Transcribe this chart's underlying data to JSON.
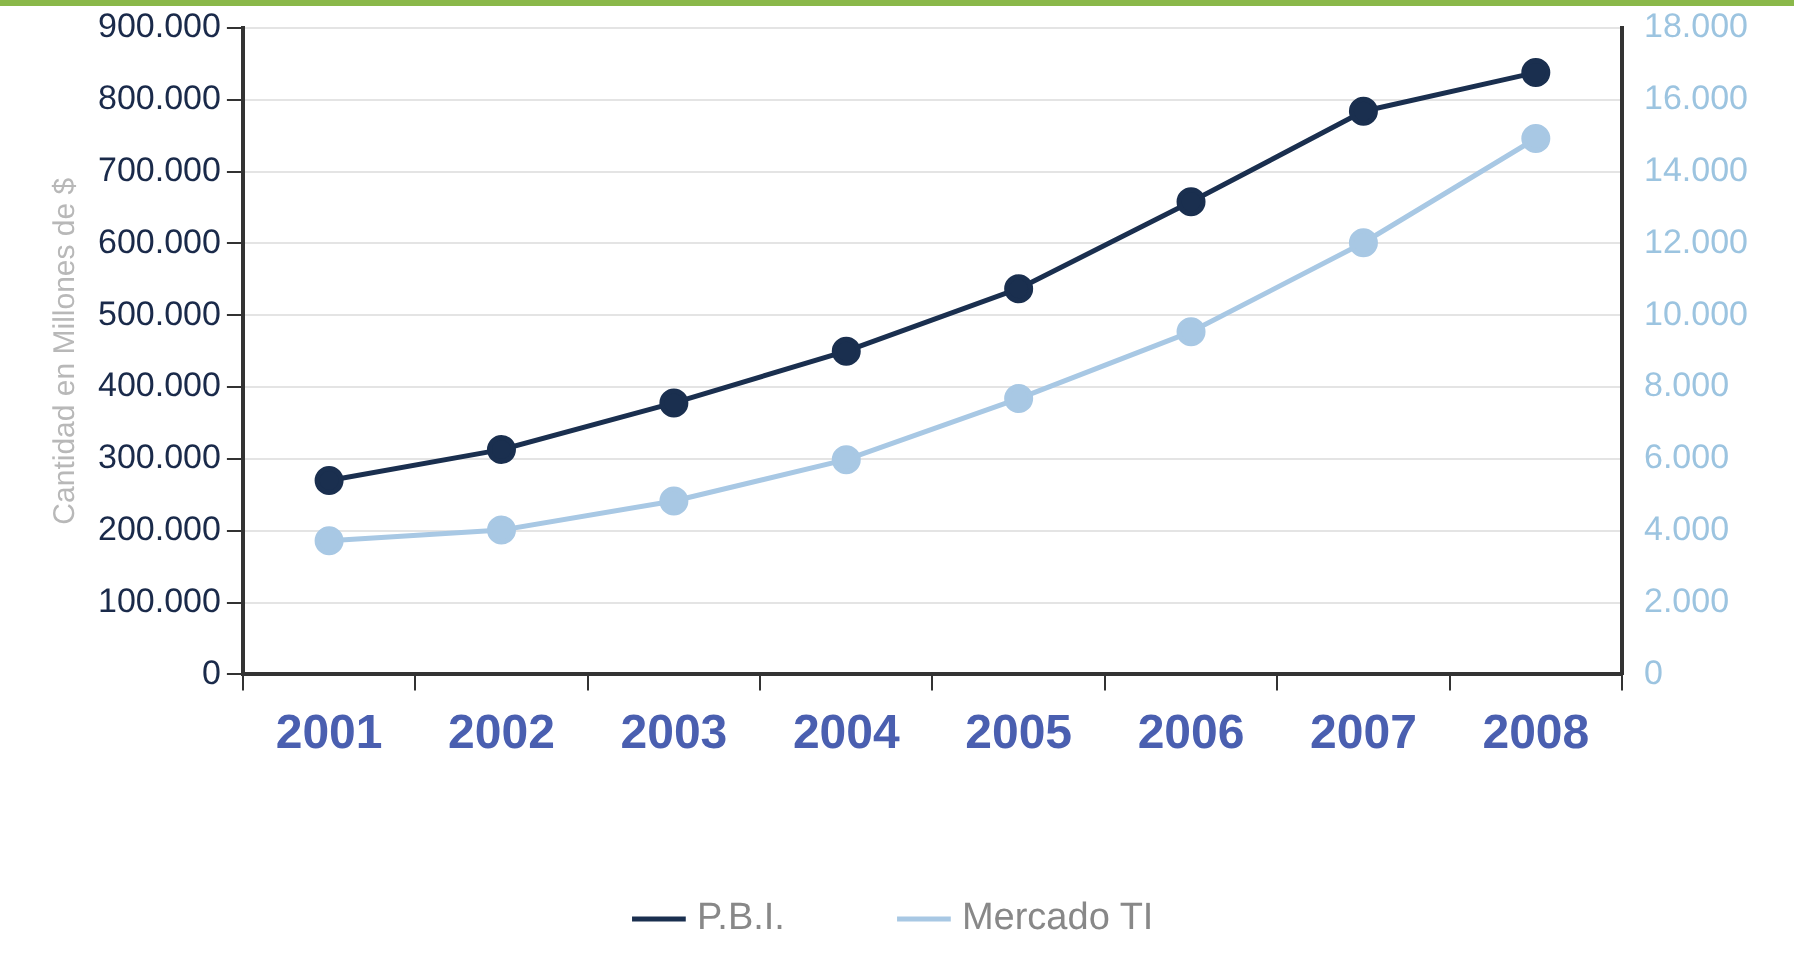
{
  "chart_data": {
    "type": "line",
    "ylabel": "Cantidad en Millones de $",
    "categories": [
      "2001",
      "2002",
      "2003",
      "2004",
      "2005",
      "2006",
      "2007",
      "2008"
    ],
    "series": [
      {
        "name": "P.B.I.",
        "color": "#1a2f4f",
        "values": [
          270000,
          313000,
          378000,
          450000,
          537000,
          658000,
          784000,
          838000
        ]
      },
      {
        "name": "Mercado TI",
        "color": "#a8c8e4",
        "axis": "y2",
        "values": [
          3720,
          4020,
          4830,
          5980,
          7680,
          9540,
          12020,
          14920
        ]
      }
    ],
    "ylim": [
      0,
      900000
    ],
    "yticks": [
      0,
      {
        "value": 100000,
        "label": "100.000"
      },
      {
        "value": 200000,
        "label": "200.000"
      },
      {
        "value": 300000,
        "label": "300.000"
      },
      {
        "value": 400000,
        "label": "400.000"
      },
      {
        "value": 500000,
        "label": "500.000"
      },
      {
        "value": 600000,
        "label": "600.000"
      },
      {
        "value": 700000,
        "label": "700.000"
      },
      {
        "value": 800000,
        "label": "800.000"
      },
      {
        "value": 900000,
        "label": "900.000"
      }
    ],
    "y2lim": [
      0,
      18000
    ],
    "y2ticks": [
      0,
      {
        "value": 2000,
        "label": "2.000"
      },
      {
        "value": 4000,
        "label": "4.000"
      },
      {
        "value": 6000,
        "label": "6.000"
      },
      {
        "value": 8000,
        "label": "8.000"
      },
      {
        "value": 10000,
        "label": "10.000"
      },
      {
        "value": 12000,
        "label": "12.000"
      },
      {
        "value": 14000,
        "label": "14.000"
      },
      {
        "value": 16000,
        "label": "16.000"
      },
      {
        "value": 18000,
        "label": "18.000"
      }
    ],
    "grid": "y",
    "legend": "bottom",
    "marker": "circle",
    "line_style": "solid"
  }
}
